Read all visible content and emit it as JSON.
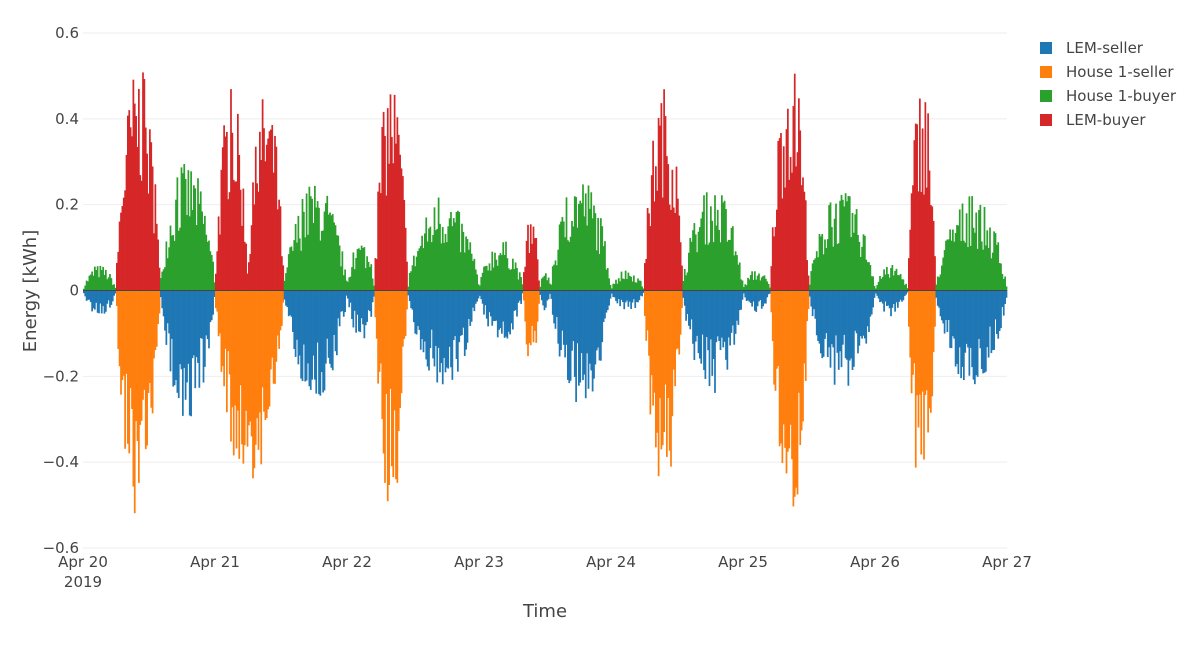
{
  "chart_data": {
    "type": "bar",
    "title": "",
    "xlabel": "Time",
    "ylabel": "Energy [kWh]",
    "ylim": [
      -0.6,
      0.6
    ],
    "yticks": [
      0.6,
      0.4,
      0.2,
      0,
      -0.2,
      -0.4,
      -0.6
    ],
    "ytick_labels": [
      "0.6",
      "0.4",
      "0.2",
      "0",
      "−0.2",
      "−0.4",
      "−0.6"
    ],
    "xrange": [
      "2019-04-20",
      "2019-04-27"
    ],
    "xticks": [
      {
        "label": "Apr 20",
        "sub": "2019"
      },
      {
        "label": "Apr 21",
        "sub": ""
      },
      {
        "label": "Apr 22",
        "sub": ""
      },
      {
        "label": "Apr 23",
        "sub": ""
      },
      {
        "label": "Apr 24",
        "sub": ""
      },
      {
        "label": "Apr 25",
        "sub": ""
      },
      {
        "label": "Apr 26",
        "sub": ""
      },
      {
        "label": "Apr 27",
        "sub": ""
      }
    ],
    "grid": true,
    "legend_position": "top-right",
    "series": [
      {
        "name": "LEM-seller",
        "color": "#1f77b4"
      },
      {
        "name": "House 1-seller",
        "color": "#ff7f0e"
      },
      {
        "name": "House 1-buyer",
        "color": "#2ca02c"
      },
      {
        "name": "LEM-buyer",
        "color": "#d62728"
      }
    ],
    "segments": [
      {
        "day": 0,
        "start_h": 0.0,
        "end_h": 6.0,
        "series": "House 1-buyer",
        "peak": 0.06
      },
      {
        "day": 0,
        "start_h": 6.0,
        "end_h": 14.0,
        "series": "LEM-buyer",
        "peak": 0.53
      },
      {
        "day": 0,
        "start_h": 14.0,
        "end_h": 24.0,
        "series": "House 1-buyer",
        "peak": 0.3
      },
      {
        "day": 1,
        "start_h": 0.0,
        "end_h": 6.0,
        "series": "LEM-buyer",
        "peak": 0.47
      },
      {
        "day": 1,
        "start_h": 6.0,
        "end_h": 12.5,
        "series": "LEM-buyer",
        "peak": 0.47
      },
      {
        "day": 1,
        "start_h": 12.5,
        "end_h": 24.0,
        "series": "House 1-buyer",
        "peak": 0.25
      },
      {
        "day": 2,
        "start_h": 0.0,
        "end_h": 5.0,
        "series": "House 1-buyer",
        "peak": 0.12
      },
      {
        "day": 2,
        "start_h": 5.0,
        "end_h": 11.0,
        "series": "LEM-buyer",
        "peak": 0.51
      },
      {
        "day": 2,
        "start_h": 11.0,
        "end_h": 24.0,
        "series": "House 1-buyer",
        "peak": 0.22
      },
      {
        "day": 3,
        "start_h": 0.0,
        "end_h": 8.0,
        "series": "House 1-buyer",
        "peak": 0.12
      },
      {
        "day": 3,
        "start_h": 8.0,
        "end_h": 11.0,
        "series": "LEM-buyer",
        "peak": 0.18
      },
      {
        "day": 3,
        "start_h": 11.0,
        "end_h": 13.0,
        "series": "House 1-buyer",
        "peak": 0.05
      },
      {
        "day": 3,
        "start_h": 13.0,
        "end_h": 24.0,
        "series": "House 1-buyer",
        "peak": 0.27
      },
      {
        "day": 4,
        "start_h": 0.0,
        "end_h": 6.0,
        "series": "House 1-buyer",
        "peak": 0.05
      },
      {
        "day": 4,
        "start_h": 6.0,
        "end_h": 13.0,
        "series": "LEM-buyer",
        "peak": 0.48
      },
      {
        "day": 4,
        "start_h": 13.0,
        "end_h": 24.0,
        "series": "House 1-buyer",
        "peak": 0.24
      },
      {
        "day": 5,
        "start_h": 0.0,
        "end_h": 5.0,
        "series": "House 1-buyer",
        "peak": 0.05
      },
      {
        "day": 5,
        "start_h": 5.0,
        "end_h": 12.0,
        "series": "LEM-buyer",
        "peak": 0.55
      },
      {
        "day": 5,
        "start_h": 12.0,
        "end_h": 24.0,
        "series": "House 1-buyer",
        "peak": 0.23
      },
      {
        "day": 6,
        "start_h": 0.0,
        "end_h": 6.0,
        "series": "House 1-buyer",
        "peak": 0.06
      },
      {
        "day": 6,
        "start_h": 6.0,
        "end_h": 11.0,
        "series": "LEM-buyer",
        "peak": 0.5
      },
      {
        "day": 6,
        "start_h": 11.0,
        "end_h": 24.0,
        "series": "House 1-buyer",
        "peak": 0.22
      }
    ],
    "negative_segments": [
      {
        "day": 0,
        "start_h": 0.0,
        "end_h": 6.0,
        "series": "LEM-seller",
        "peak": 0.06
      },
      {
        "day": 0,
        "start_h": 6.0,
        "end_h": 14.0,
        "series": "House 1-seller",
        "peak": 0.53
      },
      {
        "day": 0,
        "start_h": 14.0,
        "end_h": 24.0,
        "series": "LEM-seller",
        "peak": 0.3
      },
      {
        "day": 1,
        "start_h": 0.0,
        "end_h": 12.5,
        "series": "House 1-seller",
        "peak": 0.47
      },
      {
        "day": 1,
        "start_h": 12.5,
        "end_h": 24.0,
        "series": "LEM-seller",
        "peak": 0.25
      },
      {
        "day": 2,
        "start_h": 0.0,
        "end_h": 5.0,
        "series": "LEM-seller",
        "peak": 0.12
      },
      {
        "day": 2,
        "start_h": 5.0,
        "end_h": 11.0,
        "series": "House 1-seller",
        "peak": 0.51
      },
      {
        "day": 2,
        "start_h": 11.0,
        "end_h": 24.0,
        "series": "LEM-seller",
        "peak": 0.22
      },
      {
        "day": 3,
        "start_h": 0.0,
        "end_h": 8.0,
        "series": "LEM-seller",
        "peak": 0.12
      },
      {
        "day": 3,
        "start_h": 8.0,
        "end_h": 11.0,
        "series": "House 1-seller",
        "peak": 0.18
      },
      {
        "day": 3,
        "start_h": 11.0,
        "end_h": 13.0,
        "series": "LEM-seller",
        "peak": 0.05
      },
      {
        "day": 3,
        "start_h": 13.0,
        "end_h": 24.0,
        "series": "LEM-seller",
        "peak": 0.27
      },
      {
        "day": 4,
        "start_h": 0.0,
        "end_h": 6.0,
        "series": "LEM-seller",
        "peak": 0.05
      },
      {
        "day": 4,
        "start_h": 6.0,
        "end_h": 13.0,
        "series": "House 1-seller",
        "peak": 0.48
      },
      {
        "day": 4,
        "start_h": 13.0,
        "end_h": 24.0,
        "series": "LEM-seller",
        "peak": 0.24
      },
      {
        "day": 5,
        "start_h": 0.0,
        "end_h": 5.0,
        "series": "LEM-seller",
        "peak": 0.05
      },
      {
        "day": 5,
        "start_h": 5.0,
        "end_h": 12.0,
        "series": "House 1-seller",
        "peak": 0.55
      },
      {
        "day": 5,
        "start_h": 12.0,
        "end_h": 24.0,
        "series": "LEM-seller",
        "peak": 0.23
      },
      {
        "day": 6,
        "start_h": 0.0,
        "end_h": 6.0,
        "series": "LEM-seller",
        "peak": 0.06
      },
      {
        "day": 6,
        "start_h": 6.0,
        "end_h": 11.0,
        "series": "House 1-seller",
        "peak": 0.5
      },
      {
        "day": 6,
        "start_h": 11.0,
        "end_h": 24.0,
        "series": "LEM-seller",
        "peak": 0.22
      }
    ]
  }
}
